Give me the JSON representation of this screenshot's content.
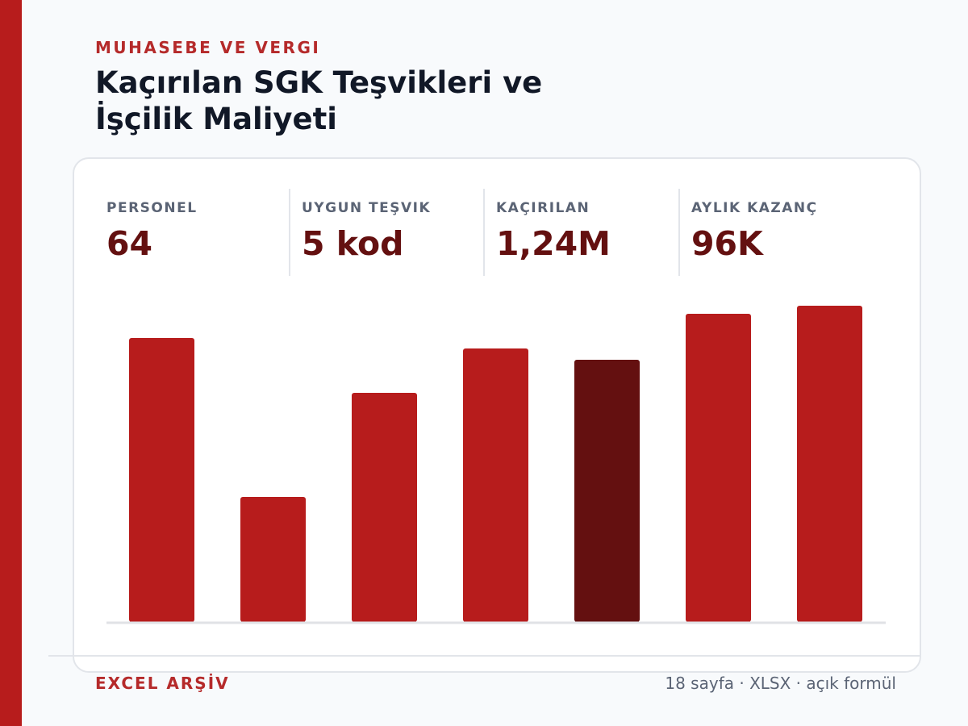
{
  "header": {
    "kicker": "MUHASEBE VE VERGI",
    "title": "Kaçırılan SGK Teşvikleri ve İşçilik Maliyeti"
  },
  "stats": [
    {
      "label": "PERSONEL",
      "value": "64"
    },
    {
      "label": "UYGUN TEŞVIK",
      "value": "5 kod"
    },
    {
      "label": "KAÇIRILAN",
      "value": "1,24M"
    },
    {
      "label": "AYLIK KAZANÇ",
      "value": "96K"
    }
  ],
  "chart_data": {
    "type": "bar",
    "categories": [
      null,
      null,
      null,
      null,
      null,
      null,
      null
    ],
    "values": [
      352,
      155,
      284,
      339,
      325,
      382,
      392
    ],
    "colors": [
      "#b71c1c",
      "#b71c1c",
      "#b71c1c",
      "#b71c1c",
      "#641010",
      "#b71c1c",
      "#b71c1c"
    ],
    "ylim": [
      0,
      400
    ]
  },
  "footer": {
    "brand": "EXCEL ARŞİV",
    "meta": "18 sayfa · XLSX · açık formül"
  }
}
